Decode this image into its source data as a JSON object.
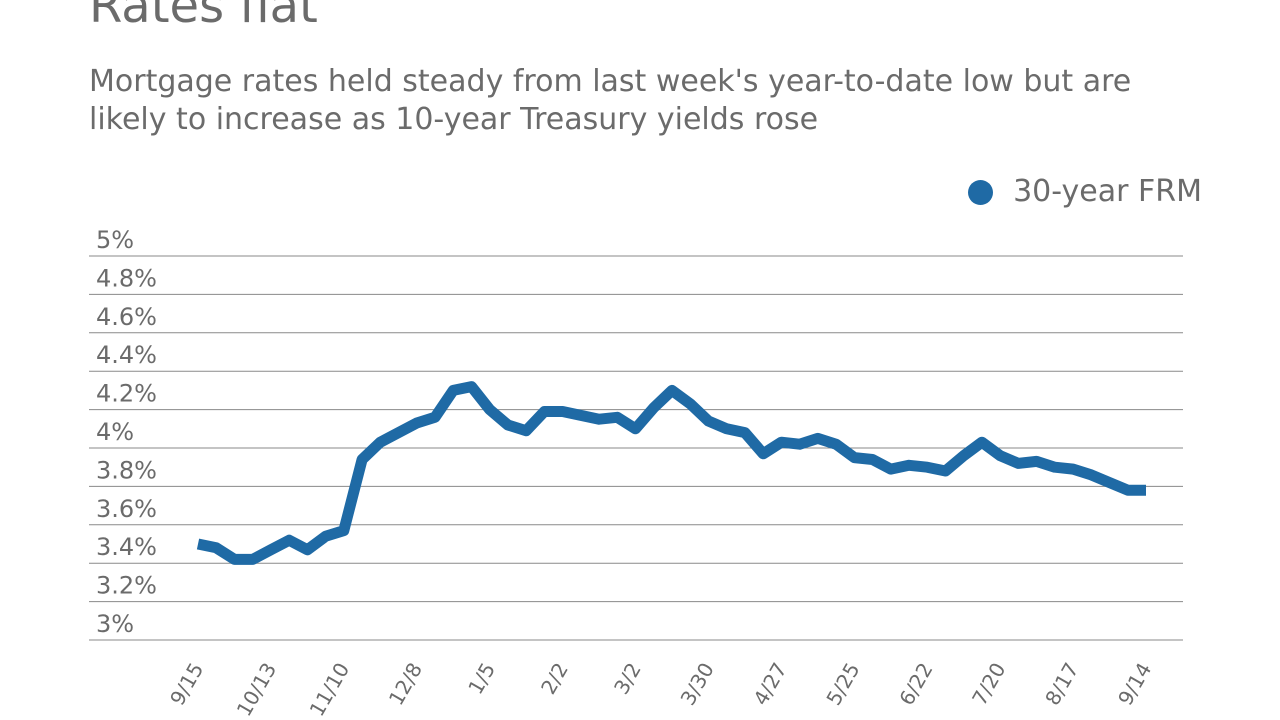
{
  "title": "Rates flat",
  "subtitle": "Mortgage rates held steady from last week's year-to-date low but are likely to increase as 10-year Treasury yields rose",
  "legend": {
    "label": "30-year FRM",
    "color": "#1f6aa5"
  },
  "chart_data": {
    "type": "line",
    "title": "Rates flat",
    "xlabel": "",
    "ylabel": "",
    "ylim": [
      3,
      5
    ],
    "grid": true,
    "legend_position": "top-right",
    "y_ticks": [
      "5%",
      "4.8%",
      "4.6%",
      "4.4%",
      "4.2%",
      "4%",
      "3.8%",
      "3.6%",
      "3.4%",
      "3.2%",
      "3%"
    ],
    "x_tick_labels": [
      "9/15",
      "10/13",
      "11/10",
      "12/8",
      "1/5",
      "2/2",
      "3/2",
      "3/30",
      "4/27",
      "5/25",
      "6/22",
      "7/20",
      "8/17",
      "9/14"
    ],
    "series": [
      {
        "name": "30-year FRM",
        "color": "#1f6aa5",
        "values": [
          3.5,
          3.48,
          3.42,
          3.42,
          3.47,
          3.52,
          3.47,
          3.54,
          3.57,
          3.94,
          4.03,
          4.08,
          4.13,
          4.16,
          4.3,
          4.32,
          4.2,
          4.12,
          4.09,
          4.19,
          4.19,
          4.17,
          4.15,
          4.16,
          4.1,
          4.21,
          4.3,
          4.23,
          4.14,
          4.1,
          4.08,
          3.97,
          4.03,
          4.02,
          4.05,
          4.02,
          3.95,
          3.94,
          3.89,
          3.91,
          3.9,
          3.88,
          3.96,
          4.03,
          3.96,
          3.92,
          3.93,
          3.9,
          3.89,
          3.86,
          3.82,
          3.78,
          3.78
        ]
      }
    ]
  }
}
